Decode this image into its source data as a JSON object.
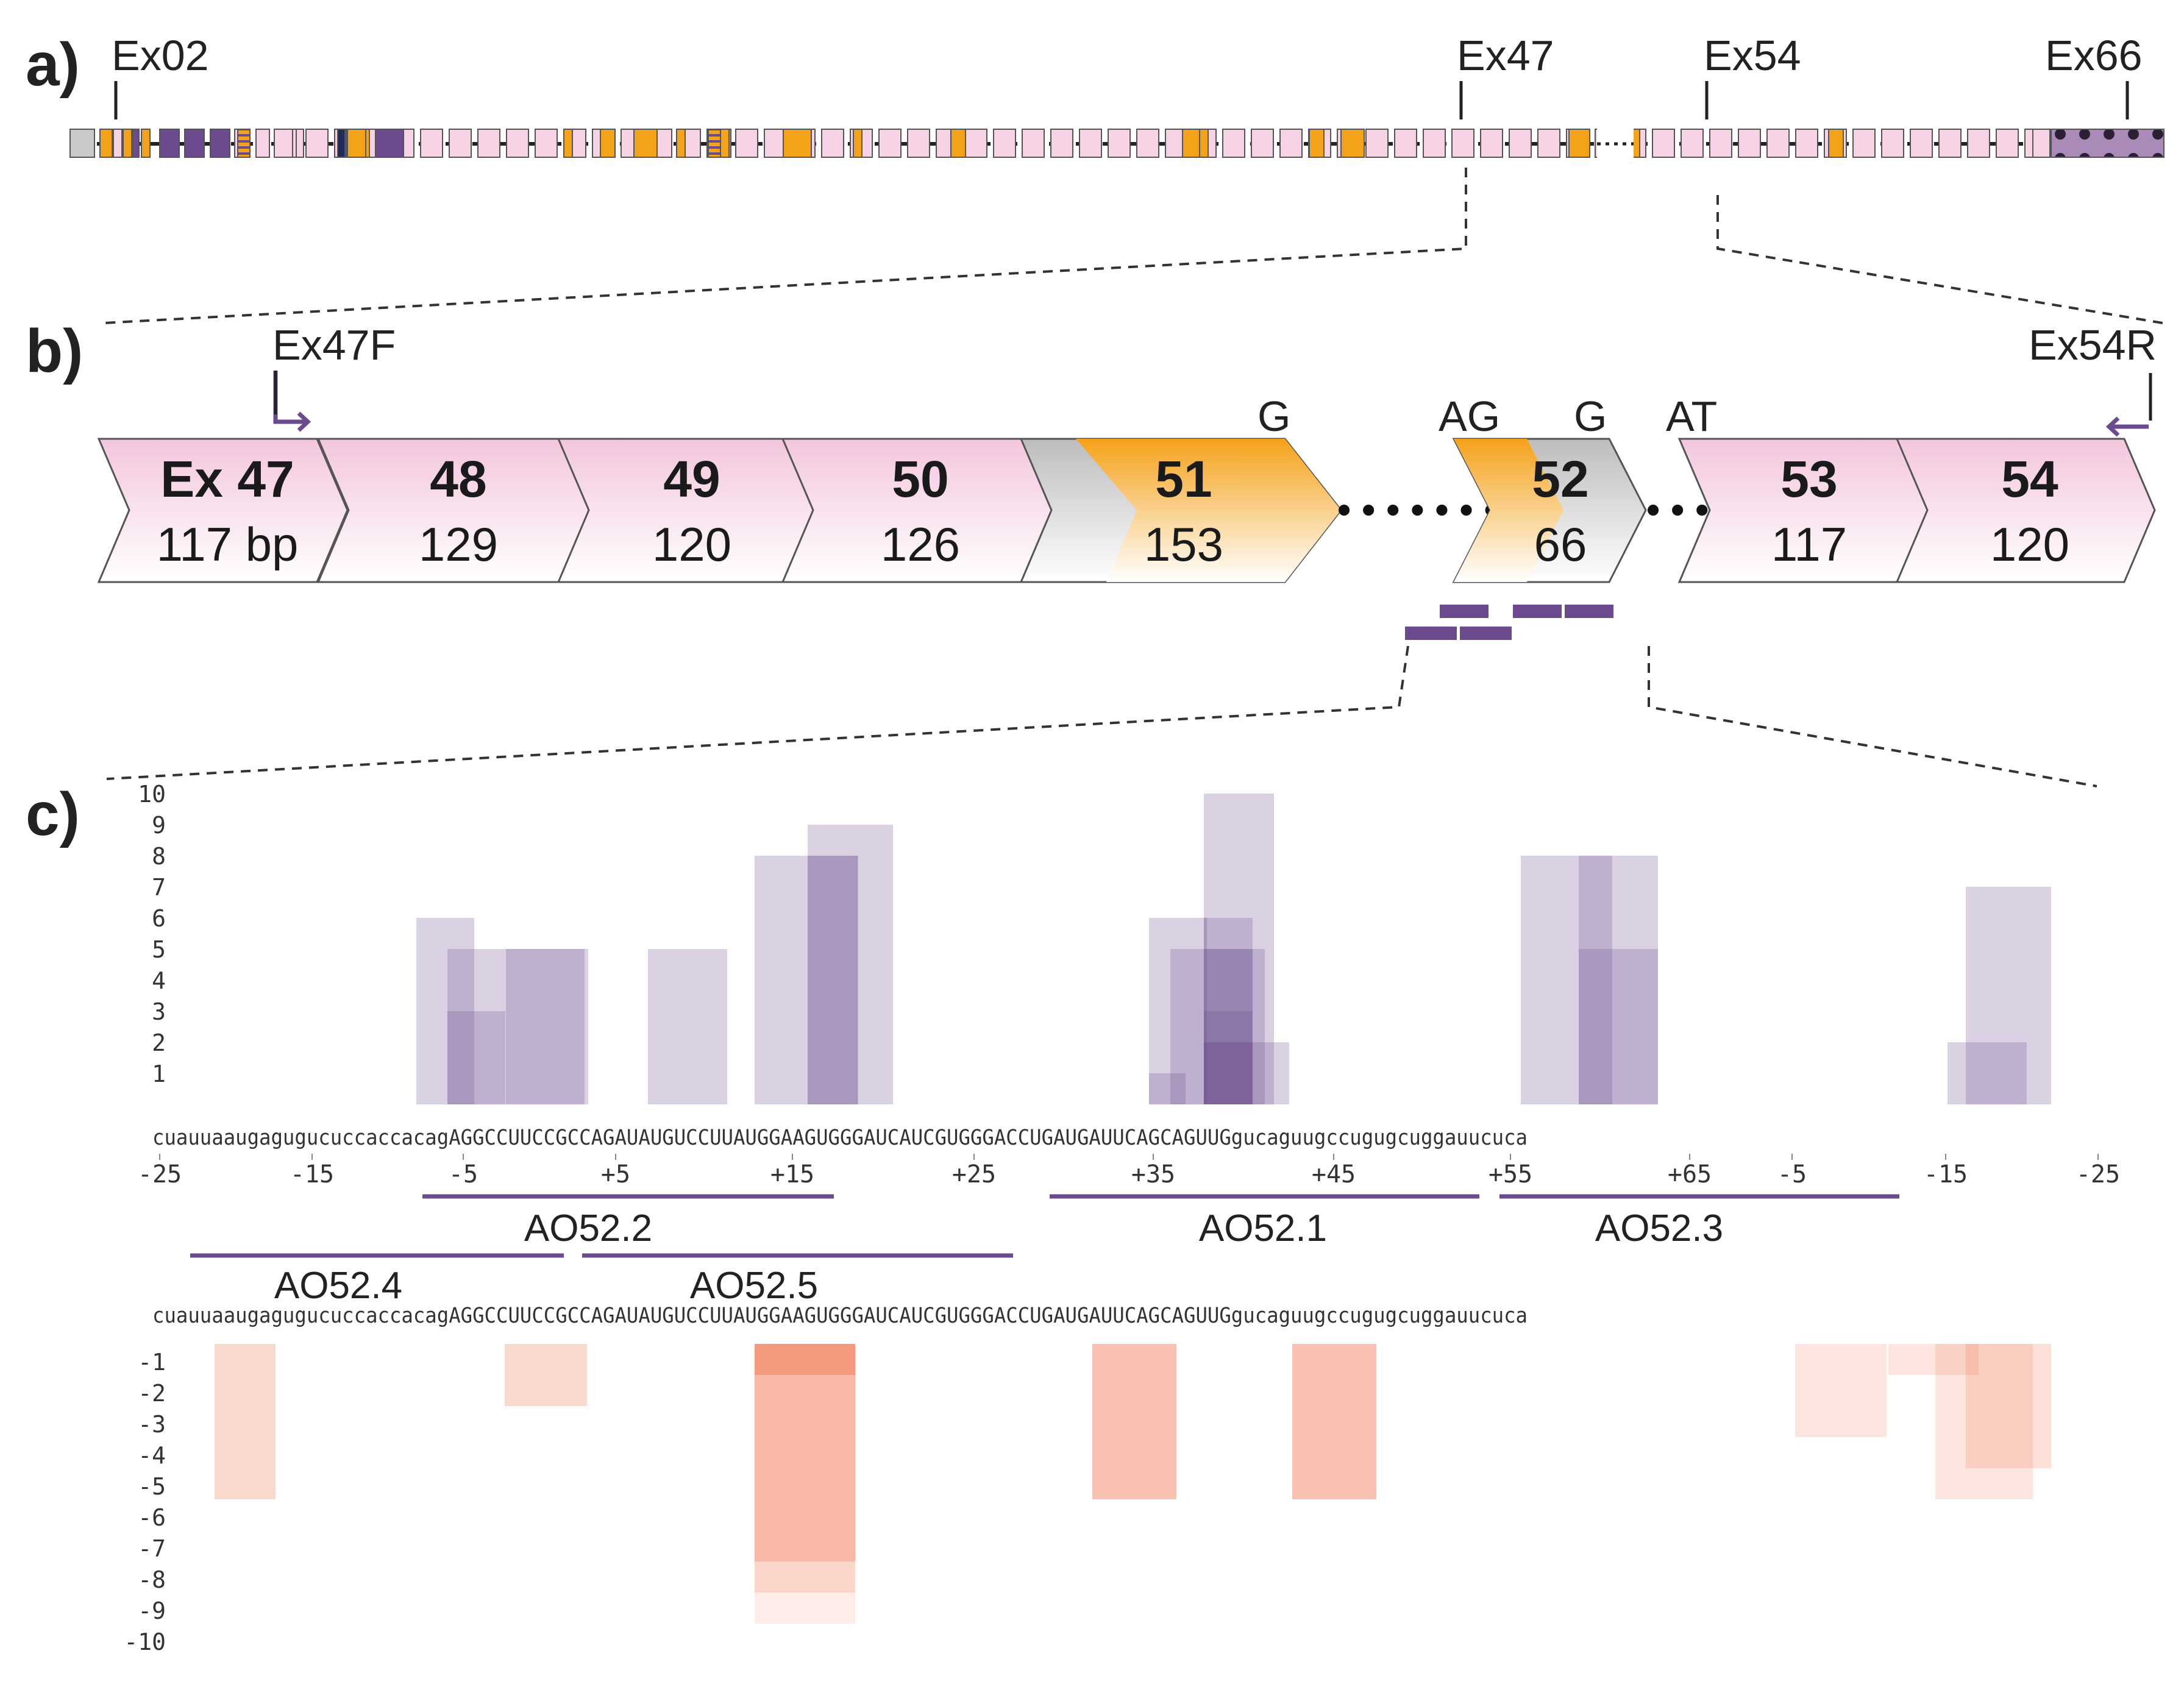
{
  "panel_labels": [
    "a)",
    "b)",
    "c)"
  ],
  "panel_a": {
    "markers": [
      {
        "label": "Ex02"
      },
      {
        "label": "Ex47"
      },
      {
        "label": "Ex54"
      },
      {
        "label": "Ex66"
      }
    ]
  },
  "panel_b": {
    "primer_forward": "Ex47F",
    "primer_reverse": "Ex54R",
    "exons": [
      {
        "id": "Ex 47",
        "length": "117 bp",
        "style": "pink"
      },
      {
        "id": "48",
        "length": "129",
        "style": "pink"
      },
      {
        "id": "49",
        "length": "120",
        "style": "pink"
      },
      {
        "id": "50",
        "length": "126",
        "style": "pink"
      },
      {
        "id": "51",
        "length": "153",
        "style": "orange"
      },
      {
        "id": "52",
        "length": "66",
        "style": "orange"
      },
      {
        "id": "53",
        "length": "117",
        "style": "pink"
      },
      {
        "id": "54",
        "length": "120",
        "style": "pink"
      }
    ],
    "site_labels": [
      "G",
      "AG",
      "G",
      "AT"
    ]
  },
  "panel_c": {
    "sequence": "cuauuaaugagugucuccaccacagAGGCCUUCCGCCAGAUAUGUCCUUAUGGAAGUGGGAUCAUCGUGGGACCUGAUGAUUCAGCAGUUGgucaguugccugugcuggauucuca",
    "top_positions": [
      "-25",
      "-15",
      "-5",
      "+5",
      "+15",
      "+25",
      "+35",
      "+45",
      "+55",
      "+65",
      "-5",
      "-15",
      "-25"
    ],
    "y_top_labels": [
      "10",
      "9",
      "8",
      "7",
      "6",
      "5",
      "4",
      "3",
      "2",
      "1"
    ],
    "y_bottom_labels": [
      "-1",
      "-2",
      "-3",
      "-4",
      "-5",
      "-6",
      "-7",
      "-8",
      "-9",
      "-10"
    ],
    "antisense_oligos": [
      {
        "name": "AO52.2"
      },
      {
        "name": "AO52.1"
      },
      {
        "name": "AO52.3"
      },
      {
        "name": "AO52.4"
      },
      {
        "name": "AO52.5"
      }
    ],
    "colors": {
      "enhancer": "#6b4a8e",
      "silencer": "#f0825f",
      "exon_pink": "#f7cfe2",
      "exon_orange": "#f5a21b",
      "ao_line": "#6b4a8e"
    }
  }
}
